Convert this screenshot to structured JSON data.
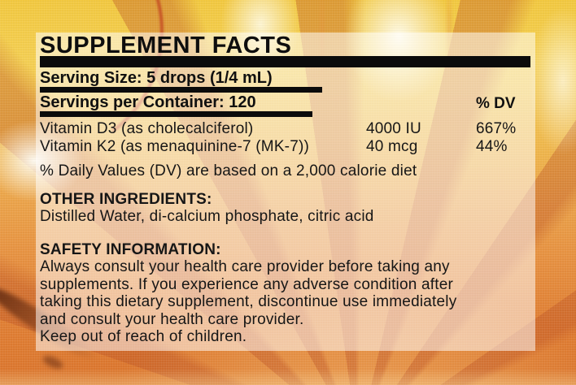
{
  "label": {
    "title": "SUPPLEMENT FACTS",
    "serving_size": "Serving Size: 5 drops (1/4 mL)",
    "servings_per_container": "Servings per Container: 120",
    "dv_header": "% DV",
    "nutrients": [
      {
        "name": "Vitamin D3 (as cholecalciferol)",
        "amount": "4000 IU",
        "dv": "667%"
      },
      {
        "name": "Vitamin K2 (as menaquinine-7 (MK-7))",
        "amount": "40 mcg",
        "dv": "44%"
      }
    ],
    "dv_note": "% Daily Values (DV) are based on a 2,000 calorie diet",
    "other_ingredients": {
      "heading": "OTHER INGREDIENTS:",
      "text": "Distilled Water, di-calcium phosphate, citric acid"
    },
    "safety": {
      "heading": "SAFETY INFORMATION:",
      "lines": [
        "Always consult your health care provider before taking any",
        "supplements. If you experience any adverse condition after",
        "taking this dietary supplement, discontinue use immediately",
        "and consult your health care provider."
      ],
      "keep_out": "Keep out of reach of children."
    }
  },
  "colors": {
    "text": "#161616",
    "rule_bar": "#0b0b0b",
    "panel_overlay": "rgba(255,255,255,0.52)",
    "bg_yellow_top": "#f2c83f",
    "bg_orange_bottom": "#da742c",
    "bg_ray": "#b84c21",
    "bg_dark_smear": "#5c270f"
  }
}
